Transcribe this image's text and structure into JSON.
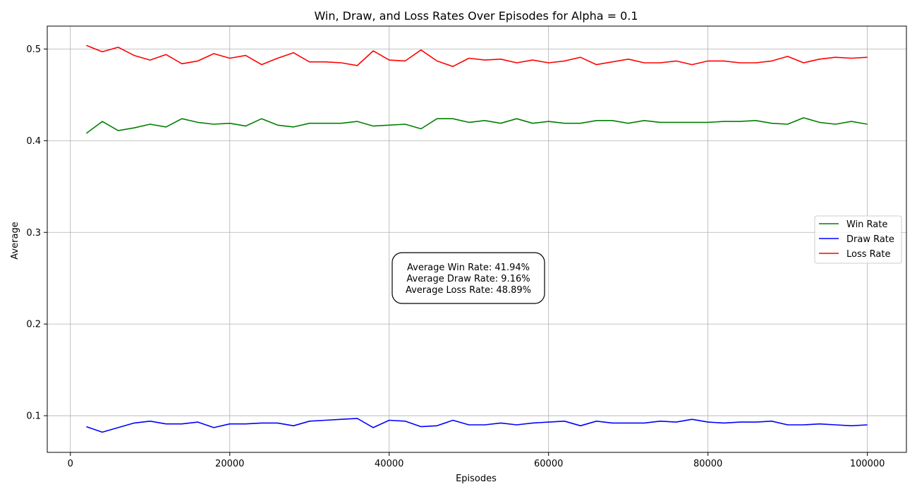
{
  "chart_data": {
    "type": "line",
    "title": "Win, Draw, and Loss Rates Over Episodes for Alpha = 0.1",
    "xlabel": "Episodes",
    "ylabel": "Average",
    "xlim": [
      -2900,
      104900
    ],
    "ylim": [
      0.06,
      0.525
    ],
    "xticks": [
      0,
      20000,
      40000,
      60000,
      80000,
      100000
    ],
    "xtick_labels": [
      "0",
      "20000",
      "40000",
      "60000",
      "80000",
      "100000"
    ],
    "yticks": [
      0.1,
      0.2,
      0.3,
      0.4,
      0.5
    ],
    "ytick_labels": [
      "0.1",
      "0.2",
      "0.3",
      "0.4",
      "0.5"
    ],
    "grid": true,
    "legend_position": "center-right",
    "x": [
      2000,
      4000,
      6000,
      8000,
      10000,
      12000,
      14000,
      16000,
      18000,
      20000,
      22000,
      24000,
      26000,
      28000,
      30000,
      32000,
      34000,
      36000,
      38000,
      40000,
      42000,
      44000,
      46000,
      48000,
      50000,
      52000,
      54000,
      56000,
      58000,
      60000,
      62000,
      64000,
      66000,
      68000,
      70000,
      72000,
      74000,
      76000,
      78000,
      80000,
      82000,
      84000,
      86000,
      88000,
      90000,
      92000,
      94000,
      96000,
      98000,
      100000
    ],
    "series": [
      {
        "name": "Win Rate",
        "color": "#008000",
        "values": [
          0.408,
          0.421,
          0.411,
          0.414,
          0.418,
          0.415,
          0.424,
          0.42,
          0.418,
          0.419,
          0.416,
          0.424,
          0.417,
          0.415,
          0.419,
          0.419,
          0.419,
          0.421,
          0.416,
          0.417,
          0.418,
          0.413,
          0.424,
          0.424,
          0.42,
          0.422,
          0.419,
          0.424,
          0.419,
          0.421,
          0.419,
          0.419,
          0.422,
          0.422,
          0.419,
          0.422,
          0.42,
          0.42,
          0.42,
          0.42,
          0.421,
          0.421,
          0.422,
          0.419,
          0.418,
          0.425,
          0.42,
          0.418,
          0.421,
          0.418
        ]
      },
      {
        "name": "Draw Rate",
        "color": "#0000ff",
        "values": [
          0.088,
          0.082,
          0.087,
          0.092,
          0.094,
          0.091,
          0.091,
          0.093,
          0.087,
          0.091,
          0.091,
          0.092,
          0.092,
          0.089,
          0.094,
          0.095,
          0.096,
          0.097,
          0.087,
          0.095,
          0.094,
          0.088,
          0.089,
          0.095,
          0.09,
          0.09,
          0.092,
          0.09,
          0.092,
          0.093,
          0.094,
          0.089,
          0.094,
          0.092,
          0.092,
          0.092,
          0.094,
          0.093,
          0.096,
          0.093,
          0.092,
          0.093,
          0.093,
          0.094,
          0.09,
          0.09,
          0.091,
          0.09,
          0.089,
          0.09
        ]
      },
      {
        "name": "Loss Rate",
        "color": "#ff0000",
        "values": [
          0.504,
          0.497,
          0.502,
          0.493,
          0.488,
          0.494,
          0.484,
          0.487,
          0.495,
          0.49,
          0.493,
          0.483,
          0.49,
          0.496,
          0.486,
          0.486,
          0.485,
          0.482,
          0.498,
          0.488,
          0.487,
          0.499,
          0.487,
          0.481,
          0.49,
          0.488,
          0.489,
          0.485,
          0.488,
          0.485,
          0.487,
          0.491,
          0.483,
          0.486,
          0.489,
          0.485,
          0.485,
          0.487,
          0.483,
          0.487,
          0.487,
          0.485,
          0.485,
          0.487,
          0.492,
          0.485,
          0.489,
          0.491,
          0.49,
          0.491
        ]
      }
    ],
    "annotation": {
      "lines": [
        "Average Win Rate: 41.94%",
        "Average Draw Rate: 9.16%",
        "Average Loss Rate: 48.89%"
      ]
    }
  }
}
